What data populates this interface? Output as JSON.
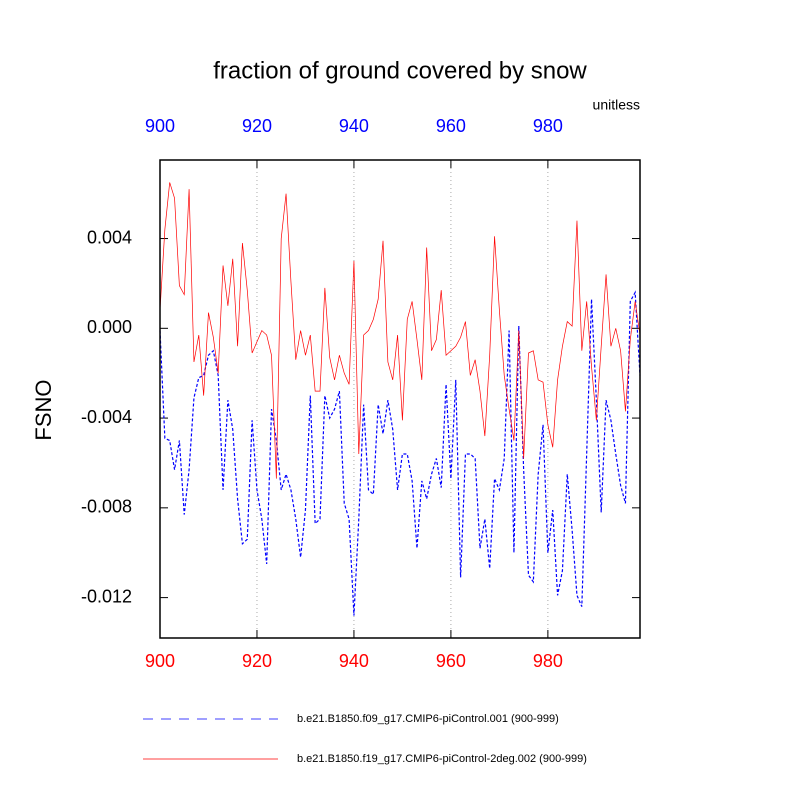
{
  "chart_data": {
    "type": "line",
    "title": "fraction of ground covered by snow",
    "subtitle": "unitless",
    "y_label": "FSNO",
    "x": [
      900,
      901,
      902,
      903,
      904,
      905,
      906,
      907,
      908,
      909,
      910,
      911,
      912,
      913,
      914,
      915,
      916,
      917,
      918,
      919,
      920,
      921,
      922,
      923,
      924,
      925,
      926,
      927,
      928,
      929,
      930,
      931,
      932,
      933,
      934,
      935,
      936,
      937,
      938,
      939,
      940,
      941,
      942,
      943,
      944,
      945,
      946,
      947,
      948,
      949,
      950,
      951,
      952,
      953,
      954,
      955,
      956,
      957,
      958,
      959,
      960,
      961,
      962,
      963,
      964,
      965,
      966,
      967,
      968,
      969,
      970,
      971,
      972,
      973,
      974,
      975,
      976,
      977,
      978,
      979,
      980,
      981,
      982,
      983,
      984,
      985,
      986,
      987,
      988,
      989,
      990,
      991,
      992,
      993,
      994,
      995,
      996,
      997,
      998,
      999
    ],
    "series": [
      {
        "name": "b.e21.B1850.f09_g17.CMIP6-piControl.001 (900-999)",
        "color": "#0000ff",
        "linestyle": "dashed",
        "values": [
          -0.0001,
          -0.0049,
          -0.005,
          -0.0063,
          -0.005,
          -0.0083,
          -0.0063,
          -0.0031,
          -0.0022,
          -0.0021,
          -0.0012,
          -0.001,
          -0.0021,
          -0.0072,
          -0.0032,
          -0.0045,
          -0.0076,
          -0.0096,
          -0.0094,
          -0.0041,
          -0.0072,
          -0.0085,
          -0.0105,
          -0.0036,
          -0.005,
          -0.0072,
          -0.0065,
          -0.0072,
          -0.0085,
          -0.0102,
          -0.0081,
          -0.003,
          -0.0087,
          -0.0085,
          -0.003,
          -0.004,
          -0.0036,
          -0.0028,
          -0.0078,
          -0.0085,
          -0.0128,
          -0.0085,
          -0.0034,
          -0.0072,
          -0.0074,
          -0.0034,
          -0.0047,
          -0.0032,
          -0.0045,
          -0.0072,
          -0.0056,
          -0.0056,
          -0.0068,
          -0.0098,
          -0.0068,
          -0.0076,
          -0.0065,
          -0.0058,
          -0.0071,
          -0.0025,
          -0.0067,
          -0.0023,
          -0.0111,
          -0.0056,
          -0.0056,
          -0.0058,
          -0.0098,
          -0.0085,
          -0.0107,
          -0.0067,
          -0.0072,
          -0.0058,
          -0.0001,
          -0.01,
          0.0001,
          -0.0063,
          -0.011,
          -0.0113,
          -0.0065,
          -0.0043,
          -0.01,
          -0.0081,
          -0.0119,
          -0.0108,
          -0.0065,
          -0.009,
          -0.0119,
          -0.0124,
          -0.0056,
          0.0013,
          -0.0032,
          -0.0082,
          -0.0032,
          -0.0041,
          -0.0056,
          -0.007,
          -0.0078,
          0.0012,
          0.0016,
          -0.0021
        ]
      },
      {
        "name": "b.e21.B1850.f19_g17.CMIP6-piControl-2deg.002 (900-999)",
        "color": "#ff0000",
        "linestyle": "solid",
        "values": [
          0.0008,
          0.0044,
          0.0065,
          0.0058,
          0.0019,
          0.0015,
          0.0062,
          -0.0015,
          -0.0003,
          -0.003,
          0.0007,
          -0.0004,
          -0.002,
          0.0028,
          0.001,
          0.0031,
          -0.0008,
          0.0038,
          0.0017,
          -0.0011,
          -0.0006,
          -0.0001,
          -0.0003,
          -0.0012,
          -0.0067,
          0.004,
          0.006,
          0.0021,
          -0.0014,
          -0.0001,
          -0.0012,
          -0.0003,
          -0.0028,
          -0.0028,
          0.0018,
          -0.0013,
          -0.0023,
          -0.0012,
          -0.002,
          -0.0025,
          0.003,
          -0.0056,
          -0.0003,
          -0.0001,
          0.0004,
          0.0013,
          0.0039,
          -0.0015,
          -0.0023,
          -0.0003,
          -0.0041,
          0.0004,
          0.0012,
          -0.0005,
          -0.0023,
          0.0036,
          -0.001,
          -0.0005,
          0.0017,
          -0.0012,
          -0.001,
          -0.0008,
          -0.0004,
          0.0003,
          -0.0021,
          -0.0014,
          -0.0028,
          -0.0048,
          -0.0012,
          0.0041,
          0.0008,
          -0.0021,
          -0.0036,
          -0.005,
          -0.0001,
          -0.0058,
          -0.0011,
          -0.001,
          -0.0023,
          -0.0024,
          -0.0043,
          -0.0053,
          -0.0023,
          -0.0008,
          0.0003,
          0.0001,
          0.0048,
          -0.001,
          0.0012,
          -0.0017,
          -0.0041,
          -0.0008,
          0.0024,
          -0.0008,
          0.0,
          -0.001,
          -0.0037,
          -0.0005,
          0.0012,
          -0.0003
        ]
      }
    ],
    "xlim": [
      900,
      999
    ],
    "ylim": [
      -0.0138,
      0.0075
    ],
    "xticks": [
      900,
      920,
      940,
      960,
      980
    ],
    "yticks": [
      {
        "value": -0.012,
        "label": "-0.012"
      },
      {
        "value": -0.008,
        "label": "-0.008"
      },
      {
        "value": -0.004,
        "label": "-0.004"
      },
      {
        "value": 0,
        "label": "0.000"
      },
      {
        "value": 0.004,
        "label": "0.004"
      }
    ],
    "top_axis_color": "#0000ff",
    "bottom_axis_color": "#ff0000",
    "grid": true
  }
}
